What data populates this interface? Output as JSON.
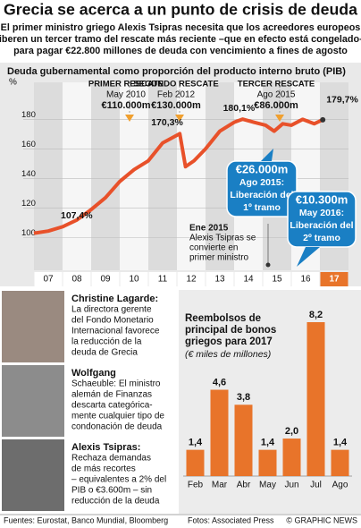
{
  "header": {
    "title": "Grecia se acerca a un punto de crisis de deuda",
    "subtitle": [
      "El primer ministro griego Alexis Tsipras necesita que los acreedores europeos",
      "liberen un tercer tramo del rescate más reciente –que en efecto está congelado–",
      "para pagar €22.800 millones de deuda con vencimiento a fines de agosto"
    ]
  },
  "chart_data": [
    {
      "type": "line",
      "title": "Deuda gubernamental como proporción del producto interno bruto (PIB)",
      "y_unit": "%",
      "x": [
        2007.0,
        2007.5,
        2008.0,
        2008.5,
        2009.0,
        2009.5,
        2010.0,
        2010.5,
        2011.0,
        2011.5,
        2012.1,
        2012.3,
        2012.6,
        2013.0,
        2013.5,
        2014.0,
        2014.3,
        2014.7,
        2015.1,
        2015.4,
        2015.7,
        2016.0,
        2016.4,
        2016.8,
        2017.1
      ],
      "series": [
        {
          "color": "#e8512a",
          "values": [
            103,
            104.5,
            107.4,
            112,
            119,
            127,
            138,
            146,
            152,
            164,
            170.3,
            148,
            152,
            160,
            172,
            178,
            180.1,
            178,
            176,
            172,
            177,
            176,
            180,
            177,
            179.7
          ],
          "value_labels": [
            null,
            null,
            "107,4%",
            null,
            null,
            null,
            null,
            null,
            null,
            null,
            "170,3%",
            null,
            null,
            null,
            null,
            null,
            "180,1%",
            null,
            null,
            null,
            null,
            null,
            null,
            null,
            "179,7%"
          ]
        }
      ],
      "xlim": [
        2007,
        2018
      ],
      "xticks": [
        {
          "value": 2007.5,
          "label": "07"
        },
        {
          "value": 2008.5,
          "label": "08"
        },
        {
          "value": 2009.5,
          "label": "09"
        },
        {
          "value": 2010.5,
          "label": "10"
        },
        {
          "value": 2011.5,
          "label": "11"
        },
        {
          "value": 2012.5,
          "label": "12"
        },
        {
          "value": 2013.5,
          "label": "13"
        },
        {
          "value": 2014.5,
          "label": "14"
        },
        {
          "value": 2015.5,
          "label": "15"
        },
        {
          "value": 2016.5,
          "label": "16"
        },
        {
          "value": 2017.5,
          "label": "17"
        }
      ],
      "ylim": [
        78,
        205
      ],
      "yticks": [
        100,
        120,
        140,
        160,
        180
      ],
      "rescues": [
        {
          "name": "PRIMER RESCATE",
          "date": "May 2010",
          "amount": "€110.000m"
        },
        {
          "name": "SEGUNDO RESCATE",
          "date": "Feb 2012",
          "amount": "€130.000m"
        },
        {
          "name": "TERCER RESCATE",
          "date": "Ago 2015",
          "amount": "€86.000m"
        }
      ],
      "event": [
        "Ene 2015",
        "Alexis Tsipras se",
        "convierte en",
        "primer ministro"
      ],
      "callouts": [
        [
          "€26.000m",
          "Ago 2015:",
          "Liberación del",
          "1º tramo"
        ],
        [
          "€10.300m",
          "May 2016:",
          "Liberación del",
          "2º tramo"
        ]
      ]
    },
    {
      "type": "bar",
      "title": [
        "Reembolsos de",
        "principal de bonos",
        "griegos para 2017"
      ],
      "subtitle": "(€ miles de millones)",
      "categories": [
        "Feb",
        "Mar",
        "Abr",
        "May",
        "Jun",
        "Jul",
        "Ago"
      ],
      "values": [
        1.4,
        4.6,
        3.8,
        1.4,
        2.0,
        8.2,
        1.4
      ],
      "value_labels": [
        "1,4",
        "4,6",
        "3,8",
        "1,4",
        "2,0",
        "8,2",
        "1,4"
      ],
      "color": "#e8742a"
    }
  ],
  "profiles": [
    {
      "name": "Christine Lagarde:",
      "lines": [
        "La directora gerente",
        "del Fondo Monetario",
        "Internacional favorece",
        "la reducción de la",
        "deuda de Grecia"
      ]
    },
    {
      "name": "Wolfgang",
      "lines": [
        "Schaeuble: El ministro",
        "alemán de Finanzas",
        "descarta categórica-",
        "mente cualquier tipo de",
        "condonación de deuda"
      ]
    },
    {
      "name": "Alexis Tsipras:",
      "lines": [
        "Rechaza demandas",
        "de más recortes",
        "– equivalentes a 2% del",
        "PIB o €3.600m – sin",
        "reducción de la deuda"
      ]
    }
  ],
  "footer": {
    "sources": "Fuentes: Eurostat, Banco Mundial, Bloomberg",
    "photos": "Fotos: Associated Press",
    "credit": "© GRAPHIC NEWS"
  }
}
